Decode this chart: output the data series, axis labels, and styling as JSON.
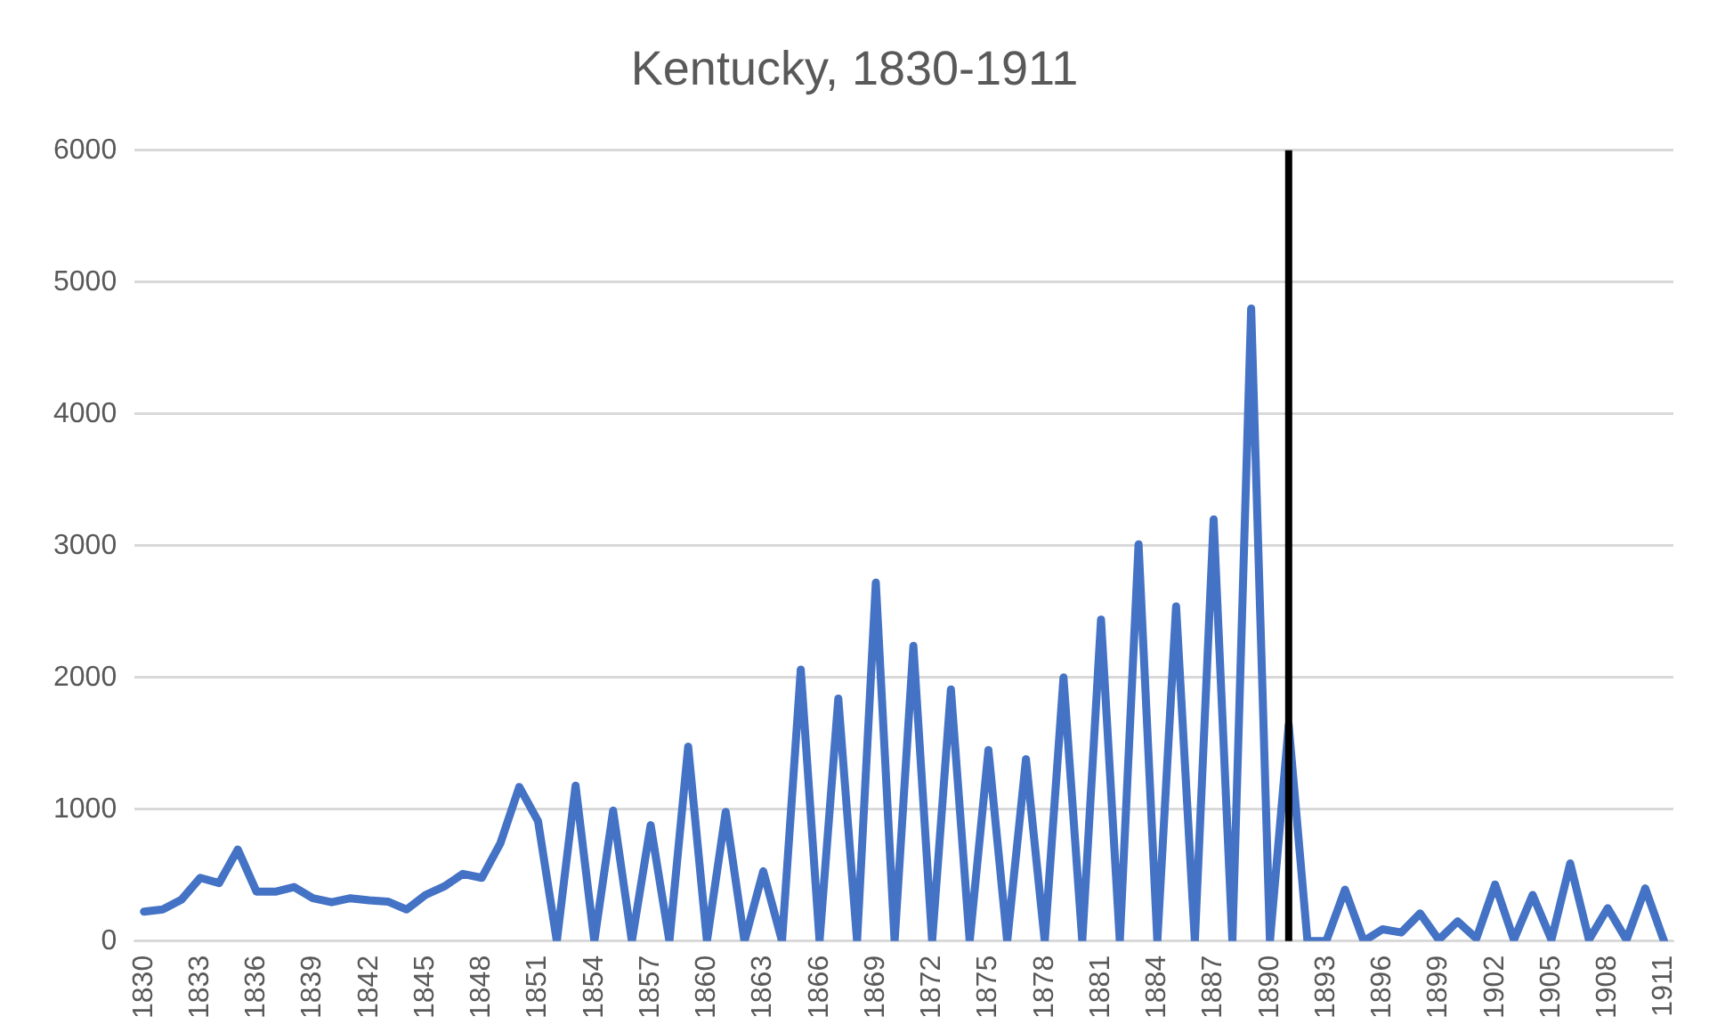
{
  "chart_data": {
    "type": "line",
    "title": "Kentucky, 1830-1911",
    "x": [
      1830,
      1831,
      1832,
      1833,
      1834,
      1835,
      1836,
      1837,
      1838,
      1839,
      1840,
      1841,
      1842,
      1843,
      1844,
      1845,
      1846,
      1847,
      1848,
      1849,
      1850,
      1851,
      1852,
      1853,
      1854,
      1855,
      1856,
      1857,
      1858,
      1859,
      1860,
      1861,
      1862,
      1863,
      1864,
      1865,
      1866,
      1867,
      1868,
      1869,
      1870,
      1871,
      1872,
      1873,
      1874,
      1875,
      1876,
      1877,
      1878,
      1879,
      1880,
      1881,
      1882,
      1883,
      1884,
      1885,
      1886,
      1887,
      1888,
      1889,
      1890,
      1891,
      1892,
      1893,
      1894,
      1895,
      1896,
      1897,
      1898,
      1899,
      1900,
      1901,
      1902,
      1903,
      1904,
      1905,
      1906,
      1907,
      1908,
      1909,
      1910,
      1911
    ],
    "series": [
      {
        "color": "#4472c4",
        "values": [
          223,
          240,
          315,
          480,
          440,
          695,
          375,
          375,
          410,
          325,
          295,
          325,
          310,
          300,
          240,
          350,
          415,
          510,
          480,
          745,
          1170,
          910,
          0,
          1180,
          0,
          990,
          0,
          880,
          0,
          1475,
          0,
          980,
          0,
          530,
          0,
          2060,
          0,
          1840,
          0,
          2720,
          0,
          2240,
          0,
          1910,
          0,
          1450,
          0,
          1380,
          0,
          2000,
          0,
          2440,
          0,
          3010,
          0,
          2540,
          0,
          3200,
          0,
          4800,
          0,
          1640,
          0,
          0,
          390,
          0,
          90,
          65,
          210,
          10,
          150,
          20,
          430,
          10,
          350,
          10,
          590,
          10,
          250,
          10,
          400,
          0
        ]
      }
    ],
    "xlim": [
      1829.5,
      1911.5
    ],
    "xticks": [
      1830,
      1833,
      1836,
      1839,
      1842,
      1845,
      1848,
      1851,
      1854,
      1857,
      1860,
      1863,
      1866,
      1869,
      1872,
      1875,
      1878,
      1881,
      1884,
      1887,
      1890,
      1893,
      1896,
      1899,
      1902,
      1905,
      1908,
      1911
    ],
    "ylim": [
      0,
      6000
    ],
    "yticks": [
      0,
      1000,
      2000,
      3000,
      4000,
      5000,
      6000
    ],
    "grid": "y",
    "legend": false,
    "marker": "none",
    "line_style": "solid",
    "ref_lines": [
      {
        "axis": "x",
        "value": 1891,
        "color": "#000000"
      }
    ]
  }
}
